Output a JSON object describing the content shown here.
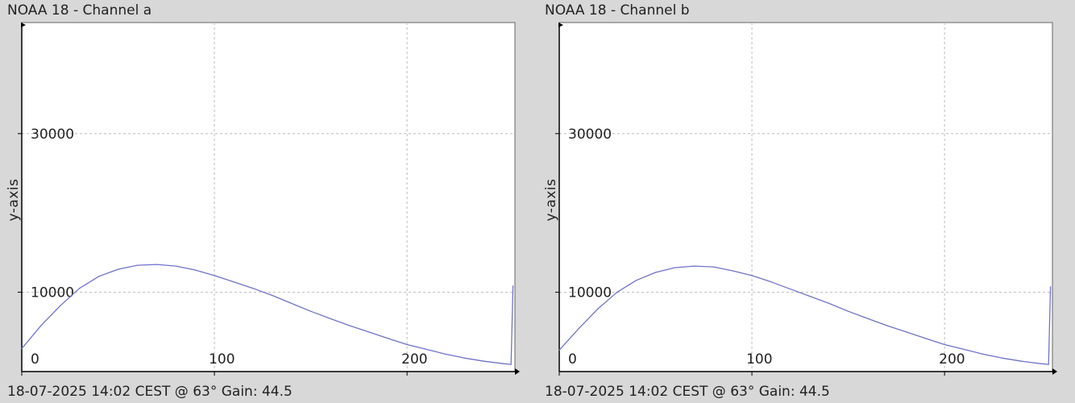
{
  "colors": {
    "background": "#d8d8d8",
    "plot_background": "#ffffff",
    "grid": "#bbbbbb",
    "series": "#6f73c9",
    "axis": "#000000"
  },
  "chart_data": [
    {
      "type": "line",
      "title": "NOAA 18 - Channel a",
      "footer": "18-07-2025 14:02 CEST @ 63° Gain: 44.5",
      "ylabel": "y-axis",
      "xlim": [
        0,
        256
      ],
      "ylim": [
        0,
        44000
      ],
      "grid": true,
      "x_ticks": [
        0,
        100,
        200
      ],
      "y_ticks": [
        10000,
        30000
      ],
      "series": [
        {
          "x": [
            0,
            10,
            20,
            30,
            40,
            50,
            60,
            70,
            80,
            90,
            100,
            110,
            120,
            130,
            140,
            150,
            160,
            170,
            180,
            190,
            200,
            210,
            220,
            230,
            240,
            250,
            254,
            255
          ],
          "y": [
            2900,
            5800,
            8300,
            10500,
            12000,
            12900,
            13400,
            13500,
            13300,
            12800,
            12100,
            11300,
            10500,
            9600,
            8600,
            7600,
            6700,
            5800,
            5000,
            4200,
            3400,
            2800,
            2200,
            1700,
            1300,
            1000,
            900,
            10800
          ]
        }
      ]
    },
    {
      "type": "line",
      "title": "NOAA 18 - Channel b",
      "footer": "18-07-2025 14:02 CEST @ 63° Gain: 44.5",
      "ylabel": "y-axis",
      "xlim": [
        0,
        256
      ],
      "ylim": [
        0,
        44000
      ],
      "grid": true,
      "x_ticks": [
        0,
        100,
        200
      ],
      "y_ticks": [
        10000,
        30000
      ],
      "series": [
        {
          "x": [
            0,
            10,
            20,
            30,
            40,
            50,
            60,
            70,
            80,
            90,
            100,
            110,
            120,
            130,
            140,
            150,
            160,
            170,
            180,
            190,
            200,
            210,
            220,
            230,
            240,
            250,
            254,
            255
          ],
          "y": [
            2700,
            5400,
            7900,
            10000,
            11500,
            12500,
            13100,
            13300,
            13200,
            12700,
            12100,
            11300,
            10400,
            9500,
            8600,
            7600,
            6700,
            5800,
            5000,
            4200,
            3400,
            2800,
            2200,
            1700,
            1300,
            1000,
            900,
            10700
          ]
        }
      ]
    }
  ]
}
